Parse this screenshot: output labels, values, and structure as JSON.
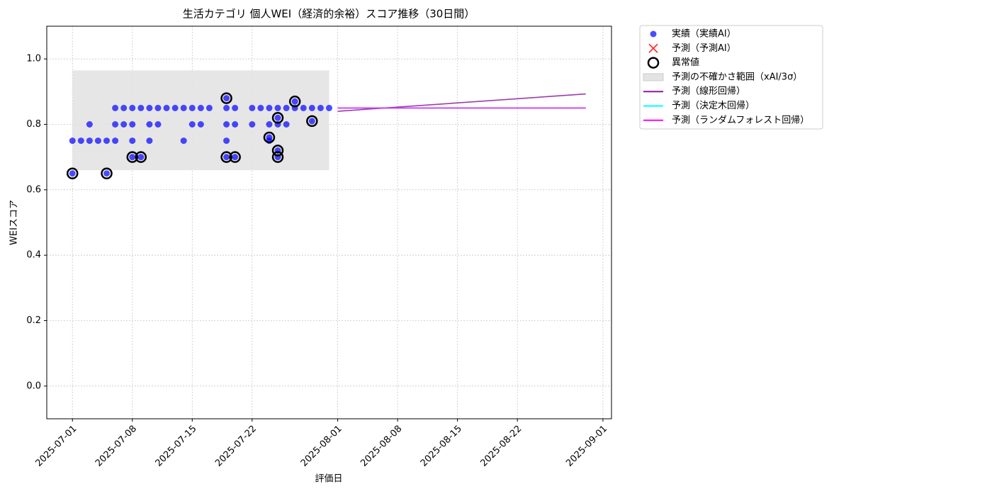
{
  "chart_data": {
    "type": "scatter",
    "title": "生活カテゴリ 個人WEI（経済的余裕）スコア推移（30日間）",
    "x_label": "評価日",
    "y_label": "WEIスコア",
    "xlim": [
      "2025-06-28",
      "2025-09-02"
    ],
    "xticks": [
      "2025-07-01",
      "2025-07-08",
      "2025-07-15",
      "2025-07-22",
      "2025-08-01",
      "2025-08-08",
      "2025-08-15",
      "2025-08-22",
      "2025-09-01"
    ],
    "ylim": [
      -0.1,
      1.1
    ],
    "yticks": [
      {
        "value": 0,
        "label": "0.0"
      },
      {
        "value": 0.2,
        "label": "0.2"
      },
      {
        "value": 0.4,
        "label": "0.4"
      },
      {
        "value": 0.6,
        "label": "0.6"
      },
      {
        "value": 0.8,
        "label": "0.8"
      },
      {
        "value": 1,
        "label": "1.0"
      }
    ],
    "grid": true,
    "legend": "outside-upper-right",
    "series": [
      {
        "name": "実績（実績AI）",
        "kind": "scatter",
        "marker": "o",
        "color": "#0000ff",
        "x": [
          "2025-07-01",
          "2025-07-01",
          "2025-07-02",
          "2025-07-03",
          "2025-07-03",
          "2025-07-04",
          "2025-07-05",
          "2025-07-05",
          "2025-07-06",
          "2025-07-06",
          "2025-07-06",
          "2025-07-07",
          "2025-07-07",
          "2025-07-08",
          "2025-07-08",
          "2025-07-08",
          "2025-07-08",
          "2025-07-09",
          "2025-07-09",
          "2025-07-10",
          "2025-07-10",
          "2025-07-10",
          "2025-07-11",
          "2025-07-11",
          "2025-07-12",
          "2025-07-13",
          "2025-07-14",
          "2025-07-14",
          "2025-07-15",
          "2025-07-15",
          "2025-07-16",
          "2025-07-16",
          "2025-07-17",
          "2025-07-19",
          "2025-07-19",
          "2025-07-19",
          "2025-07-19",
          "2025-07-19",
          "2025-07-20",
          "2025-07-20",
          "2025-07-20",
          "2025-07-22",
          "2025-07-22",
          "2025-07-23",
          "2025-07-24",
          "2025-07-24",
          "2025-07-24",
          "2025-07-24",
          "2025-07-25",
          "2025-07-25",
          "2025-07-25",
          "2025-07-25",
          "2025-07-25",
          "2025-07-26",
          "2025-07-26",
          "2025-07-27",
          "2025-07-27",
          "2025-07-28",
          "2025-07-29",
          "2025-07-29",
          "2025-07-30",
          "2025-07-31"
        ],
        "values": [
          0.65,
          0.75,
          0.75,
          0.8,
          0.75,
          0.75,
          0.75,
          0.65,
          0.85,
          0.75,
          0.8,
          0.8,
          0.85,
          0.85,
          0.8,
          0.75,
          0.7,
          0.7,
          0.85,
          0.85,
          0.8,
          0.75,
          0.8,
          0.85,
          0.85,
          0.85,
          0.75,
          0.85,
          0.85,
          0.8,
          0.85,
          0.8,
          0.85,
          0.85,
          0.88,
          0.8,
          0.75,
          0.7,
          0.85,
          0.8,
          0.7,
          0.85,
          0.8,
          0.85,
          0.76,
          0.8,
          0.85,
          0.75,
          0.82,
          0.8,
          0.7,
          0.72,
          0.85,
          0.85,
          0.8,
          0.87,
          0.85,
          0.85,
          0.81,
          0.85,
          0.85,
          0.85
        ]
      },
      {
        "name": "予測（予測AI）",
        "kind": "scatter",
        "marker": "x",
        "color": "#ff0000",
        "x": [],
        "values": []
      },
      {
        "name": "異常値",
        "kind": "scatter",
        "marker": "ring",
        "color": "#000000",
        "x": [
          "2025-07-01",
          "2025-07-05",
          "2025-07-08",
          "2025-07-09",
          "2025-07-19",
          "2025-07-19",
          "2025-07-20",
          "2025-07-24",
          "2025-07-25",
          "2025-07-25",
          "2025-07-25",
          "2025-07-27",
          "2025-07-29"
        ],
        "values": [
          0.65,
          0.65,
          0.7,
          0.7,
          0.88,
          0.7,
          0.7,
          0.76,
          0.82,
          0.7,
          0.72,
          0.87,
          0.81
        ]
      },
      {
        "name": "予測の不確かさ範囲（xAI/3σ）",
        "kind": "area",
        "color": "#e3e3e3",
        "x": [
          "2025-07-01",
          "2025-07-31"
        ],
        "lower": [
          0.66,
          0.66
        ],
        "upper": [
          0.965,
          0.965
        ]
      },
      {
        "name": "予測（線形回帰）",
        "kind": "line",
        "color": "#8b1a9e",
        "x": [
          "2025-08-01",
          "2025-08-30"
        ],
        "values": [
          0.84,
          0.893
        ]
      },
      {
        "name": "予測（決定木回帰）",
        "kind": "line",
        "color": "#00ffff",
        "x": [
          "2025-08-01",
          "2025-08-30"
        ],
        "values": [
          0.85,
          0.85
        ]
      },
      {
        "name": "予測（ランダムフォレスト回帰）",
        "kind": "line",
        "color": "#ff00ff",
        "x": [
          "2025-08-01",
          "2025-08-30"
        ],
        "values": [
          0.85,
          0.85
        ]
      }
    ]
  }
}
